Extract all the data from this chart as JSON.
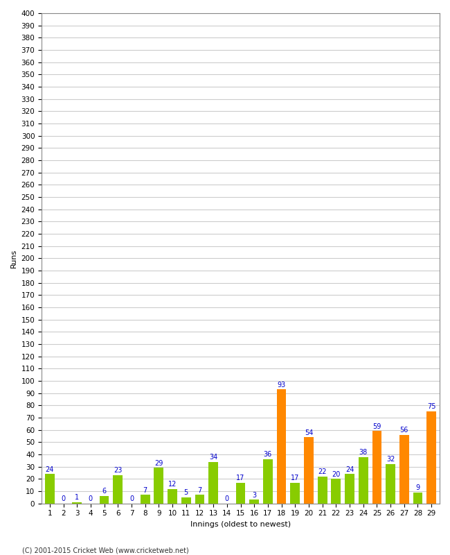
{
  "xlabel": "Innings (oldest to newest)",
  "ylabel": "Runs",
  "innings": [
    1,
    2,
    3,
    4,
    5,
    6,
    7,
    8,
    9,
    10,
    11,
    12,
    13,
    14,
    15,
    16,
    17,
    18,
    19,
    20,
    21,
    22,
    23,
    24,
    25,
    26,
    27,
    28,
    29
  ],
  "values": [
    24,
    0,
    1,
    0,
    6,
    23,
    0,
    7,
    29,
    12,
    5,
    7,
    34,
    0,
    17,
    3,
    36,
    93,
    17,
    54,
    22,
    20,
    24,
    38,
    59,
    32,
    56,
    9,
    75
  ],
  "colors": [
    "#88cc00",
    "#88cc00",
    "#88cc00",
    "#88cc00",
    "#88cc00",
    "#88cc00",
    "#88cc00",
    "#88cc00",
    "#88cc00",
    "#88cc00",
    "#88cc00",
    "#88cc00",
    "#88cc00",
    "#88cc00",
    "#88cc00",
    "#88cc00",
    "#88cc00",
    "#ff8800",
    "#88cc00",
    "#ff8800",
    "#88cc00",
    "#88cc00",
    "#88cc00",
    "#88cc00",
    "#ff8800",
    "#88cc00",
    "#ff8800",
    "#88cc00",
    "#ff8800"
  ],
  "ylim": [
    0,
    400
  ],
  "ytick_step": 10,
  "bg_color": "#ffffff",
  "grid_color": "#cccccc",
  "label_color": "#0000cc",
  "label_fontsize": 7,
  "axis_label_fontsize": 8,
  "tick_fontsize": 7.5,
  "footer": "(C) 2001-2015 Cricket Web (www.cricketweb.net)"
}
